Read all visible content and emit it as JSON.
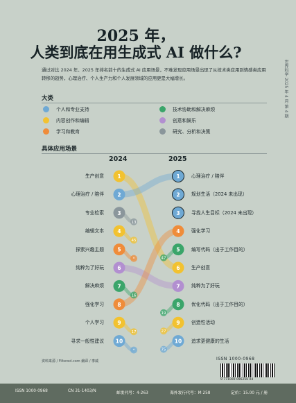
{
  "title": {
    "line1": "2025 年，",
    "line2": "人类到底在用生成式 AI 做什么?"
  },
  "intro": "通过对比 2024 年、2025 年排名前十的生成式 AI 应用场景，不难发现应用场景出现了从技术类应用到情感类应用转移的趋势，心理治疗、个人生产力和个人发展领域的应用更是大幅增长。",
  "side_text": "世界科学    2025 年 4 月  第 4 期",
  "categories_heading": "大类",
  "categories": [
    {
      "label": "个人和专业支持",
      "color": "#6fa9d4"
    },
    {
      "label": "技术协助和解决麻烦",
      "color": "#3aa56a"
    },
    {
      "label": "内容创作和编辑",
      "color": "#f2c230"
    },
    {
      "label": "创意和娱乐",
      "color": "#b28fd0"
    },
    {
      "label": "学习和教育",
      "color": "#ef8c3a"
    },
    {
      "label": "研究、分析和决策",
      "color": "#8a969b"
    }
  ],
  "scenes_heading": "具体应用场景",
  "chart_data": {
    "type": "bump",
    "years": [
      "2024",
      "2025"
    ],
    "left": [
      {
        "rank": 1,
        "label": "生产创意",
        "category": 2
      },
      {
        "rank": 2,
        "label": "心理治疗 / 陪伴",
        "category": 0
      },
      {
        "rank": 3,
        "label": "专业检索",
        "category": 5
      },
      {
        "rank": 4,
        "label": "编辑文本",
        "category": 2
      },
      {
        "rank": 5,
        "label": "探索兴趣主题",
        "category": 4
      },
      {
        "rank": 6,
        "label": "纯粹为了好玩",
        "category": 3
      },
      {
        "rank": 7,
        "label": "解决麻烦",
        "category": 1
      },
      {
        "rank": 8,
        "label": "强化学习",
        "category": 4
      },
      {
        "rank": 9,
        "label": "个人学习",
        "category": 2
      },
      {
        "rank": 10,
        "label": "寻求一般性建议",
        "category": 0
      }
    ],
    "right": [
      {
        "rank": 1,
        "label": "心理治疗 / 陪伴",
        "category": 0
      },
      {
        "rank": 2,
        "label": "规划生活（2024 未出现）",
        "category": 0
      },
      {
        "rank": 3,
        "label": "寻找人生目标（2024 未出现）",
        "category": 0
      },
      {
        "rank": 4,
        "label": "强化学习",
        "category": 4
      },
      {
        "rank": 5,
        "label": "编写代码（出于工作目的）",
        "category": 1
      },
      {
        "rank": 6,
        "label": "生产创意",
        "category": 2
      },
      {
        "rank": 7,
        "label": "纯粹为了好玩",
        "category": 3
      },
      {
        "rank": 8,
        "label": "优化代码（出于工作目的）",
        "category": 1
      },
      {
        "rank": 9,
        "label": "创造性活动",
        "category": 2
      },
      {
        "rank": 10,
        "label": "追求更健康的生活",
        "category": 0
      }
    ],
    "left_drop_badges": [
      {
        "rank": 3,
        "to": "13"
      },
      {
        "rank": 4,
        "to": "45"
      },
      {
        "rank": 5,
        "to": "*"
      },
      {
        "rank": 7,
        "to": "16"
      },
      {
        "rank": 9,
        "to": "17"
      },
      {
        "rank": 10,
        "to": "*"
      }
    ],
    "right_rise_badges": [
      {
        "rank": 5,
        "from": "47"
      },
      {
        "rank": 8,
        "from": "19"
      },
      {
        "rank": 9,
        "from": "27"
      },
      {
        "rank": 10,
        "from": "75"
      }
    ],
    "links": [
      {
        "from": 1,
        "to": 6
      },
      {
        "from": 2,
        "to": 1
      },
      {
        "from": 6,
        "to": 7
      },
      {
        "from": 8,
        "to": 4
      }
    ]
  },
  "source": "资料来源 / Filtered.com    编译 / 李威",
  "issn_top": "ISSN 1000-0968",
  "barcode_num": "9 771000 096256  04",
  "footer": {
    "issn": "ISSN 1000-0968",
    "cn": "CN 31-1403/N",
    "postal": "邮发代号：4-263",
    "overseas": "海外发行代号：M 258",
    "price": "定价：15.00 元 / 册"
  }
}
